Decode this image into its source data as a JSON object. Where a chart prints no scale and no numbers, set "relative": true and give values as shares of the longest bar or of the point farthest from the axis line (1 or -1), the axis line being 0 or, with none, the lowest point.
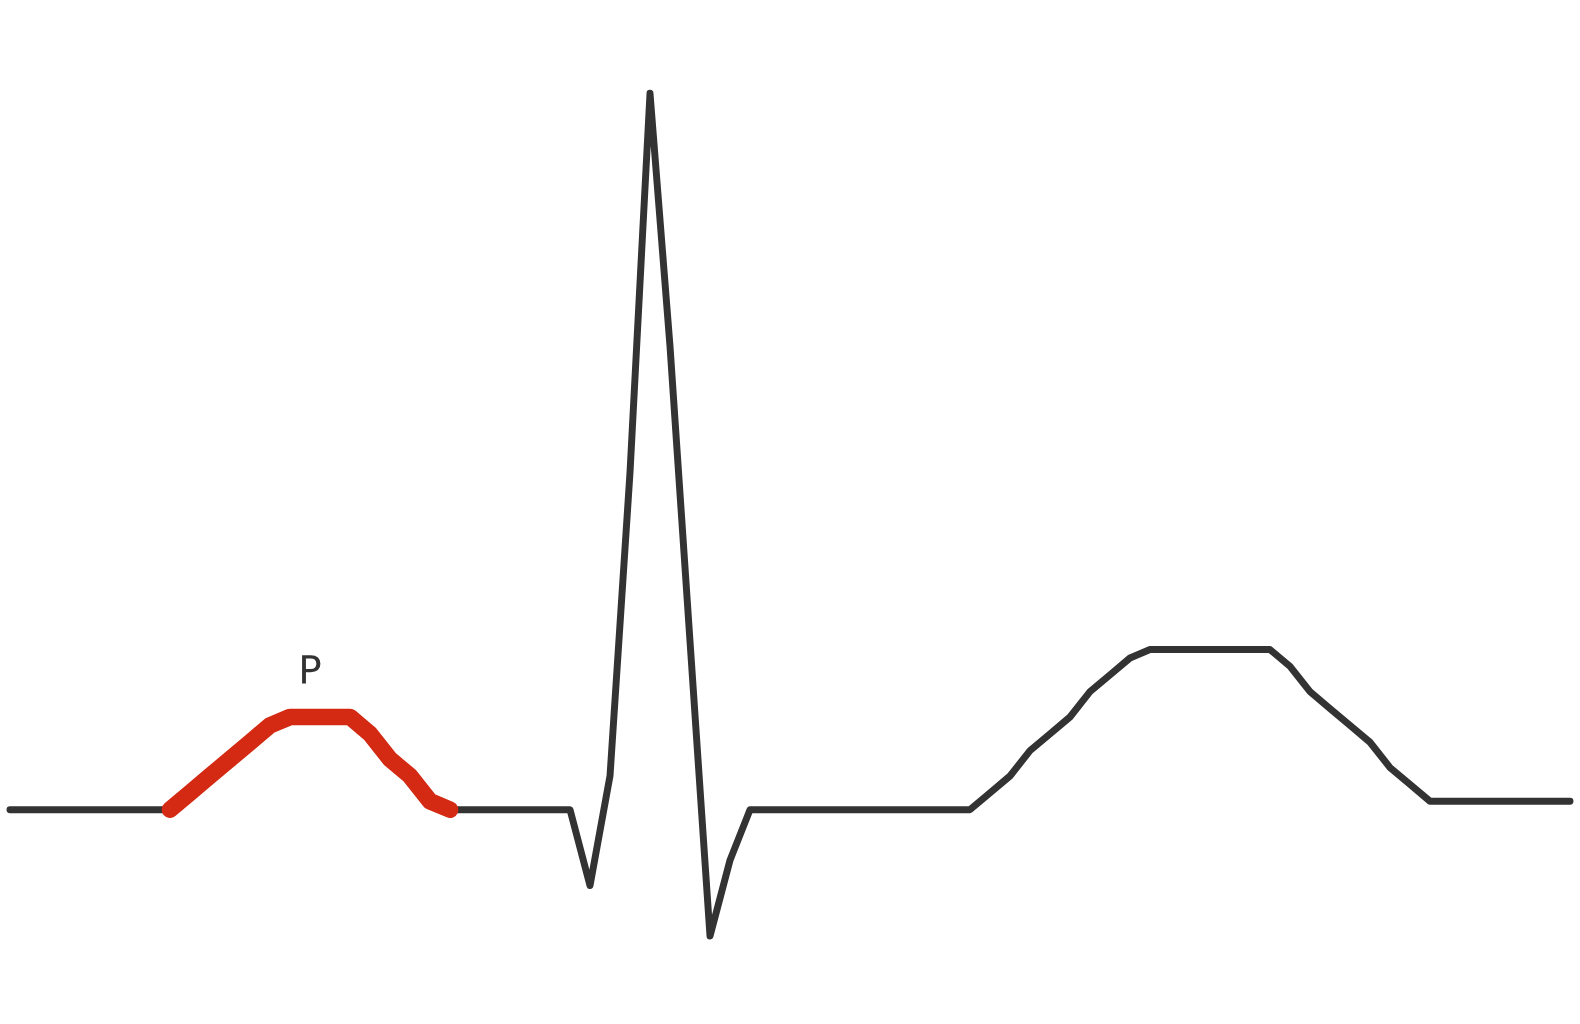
{
  "chart_data": {
    "type": "line",
    "relative": true,
    "legend": false,
    "marker": "none",
    "line_style": "solid",
    "categories": [
      null,
      null,
      null,
      null,
      null,
      null,
      null,
      null,
      null,
      null,
      null,
      null,
      null,
      null,
      null,
      null,
      null,
      null,
      null,
      null,
      null,
      null,
      null,
      null,
      null,
      null,
      null,
      null,
      null,
      null,
      null,
      null,
      null,
      null,
      null,
      null,
      null,
      null,
      null,
      null,
      null,
      null,
      null,
      null,
      null,
      null,
      null,
      null,
      null,
      null,
      null,
      null,
      null,
      null,
      null,
      null,
      null,
      null,
      null,
      null,
      null,
      null,
      null,
      null,
      null,
      null,
      null,
      null,
      null,
      null,
      null,
      null,
      null,
      null,
      null,
      null,
      null,
      null,
      null
    ],
    "series": [
      {
        "color": "#333333",
        "values": [
          0.15,
          0.15,
          0.15,
          0.15,
          0.15,
          0.15,
          0.15,
          0.15,
          0.15,
          null,
          null,
          null,
          null,
          null,
          null,
          null,
          null,
          null,
          null,
          null,
          null,
          null,
          0.15,
          0.15,
          0.15,
          0.15,
          0.15,
          0.15,
          0.15,
          0.06,
          0.19,
          0.55,
          1,
          0.7,
          0.35,
          0,
          0.09,
          0.15,
          0.15,
          0.15,
          0.15,
          0.15,
          0.15,
          0.15,
          0.15,
          0.15,
          0.15,
          0.15,
          0.15,
          0.17,
          0.19,
          0.22,
          0.24,
          0.26,
          0.29,
          0.31,
          0.33,
          0.34,
          0.34,
          0.34,
          0.34,
          0.34,
          0.34,
          0.34,
          0.32,
          0.29,
          0.27,
          0.25,
          0.23,
          0.2,
          0.18,
          0.16,
          0.16,
          0.16,
          0.16,
          0.16,
          0.16,
          0.16,
          0.16
        ]
      },
      {
        "color": "#d42a14",
        "values": [
          null,
          null,
          null,
          null,
          null,
          null,
          null,
          null,
          0.15,
          0.17,
          0.19,
          0.21,
          0.23,
          0.25,
          0.26,
          0.26,
          0.26,
          0.26,
          0.24,
          0.21,
          0.19,
          0.16,
          0.15,
          null,
          null,
          null,
          null,
          null,
          null,
          null,
          null,
          null,
          null,
          null,
          null,
          null,
          null,
          null,
          null,
          null,
          null,
          null,
          null,
          null,
          null,
          null,
          null,
          null,
          null,
          null,
          null,
          null,
          null,
          null,
          null,
          null,
          null,
          null,
          null,
          null,
          null,
          null,
          null,
          null,
          null,
          null,
          null,
          null,
          null,
          null,
          null,
          null,
          null,
          null,
          null,
          null,
          null,
          null,
          null
        ]
      }
    ],
    "annotations": [
      "P"
    ]
  }
}
